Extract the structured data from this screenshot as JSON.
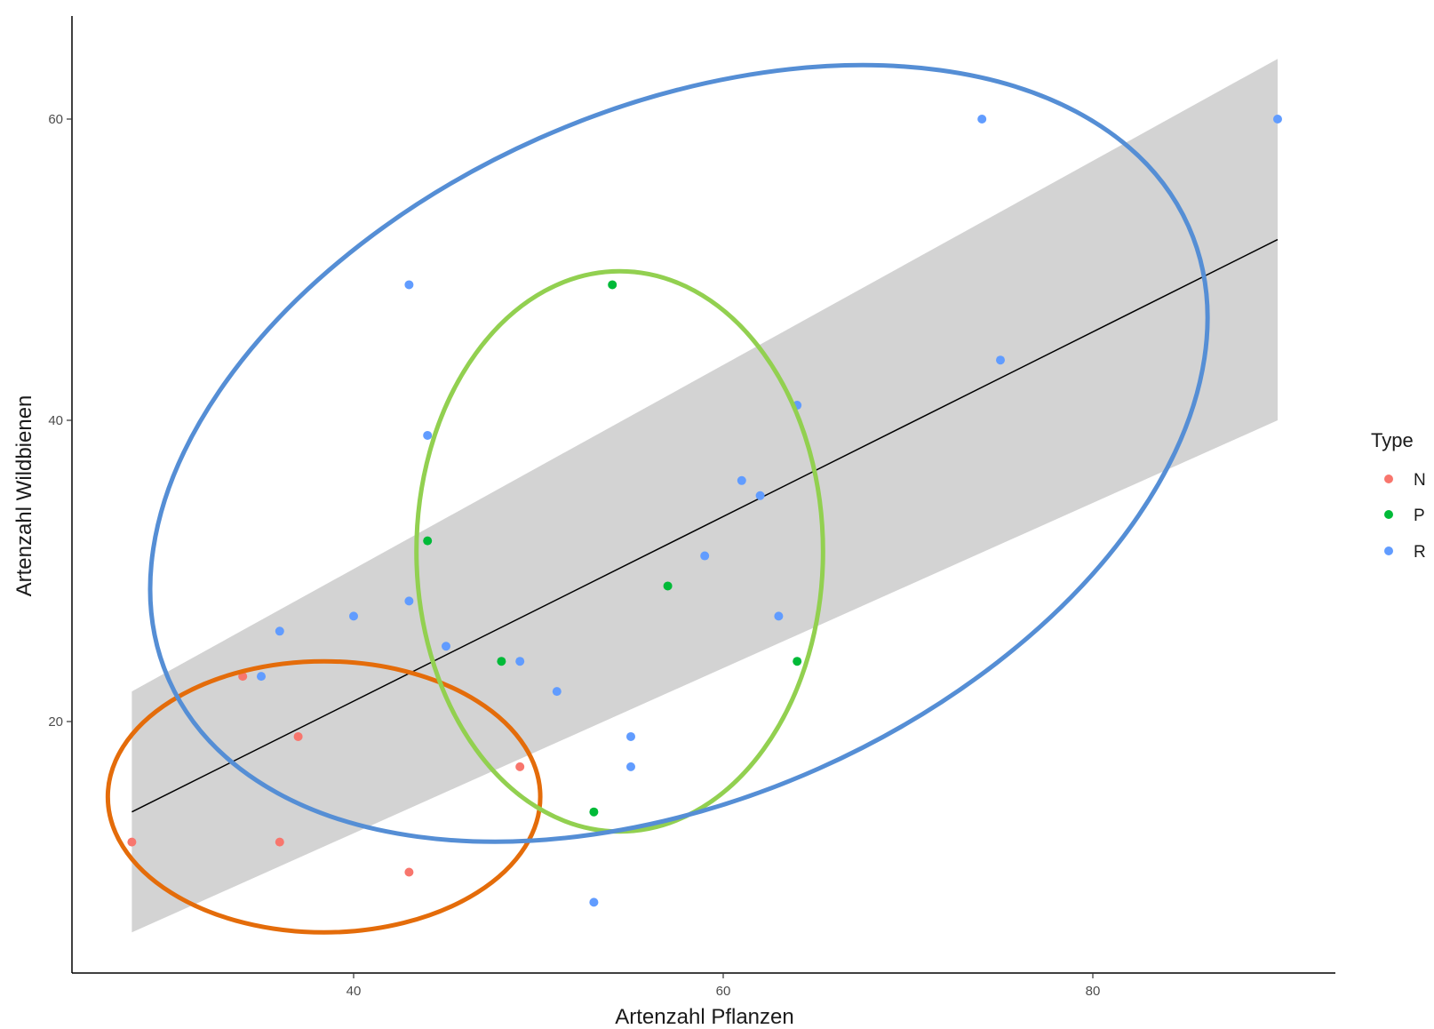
{
  "chart_data": {
    "type": "scatter",
    "title": "",
    "xlabel": "Artenzahl Pflanzen",
    "ylabel": "Artenzahl Wildbienen",
    "xlim": [
      25,
      91
    ],
    "ylim": [
      5,
      68
    ],
    "x_ticks": [
      40,
      60,
      80
    ],
    "y_ticks": [
      20,
      40,
      60
    ],
    "grid": false,
    "legend": {
      "title": "Type",
      "placement": "right",
      "entries": [
        {
          "label": "N",
          "color": "#F8766D"
        },
        {
          "label": "P",
          "color": "#00BA38"
        },
        {
          "label": "R",
          "color": "#619CFF"
        }
      ]
    },
    "series": [
      {
        "name": "N",
        "color": "#F8766D",
        "points": [
          [
            28,
            12
          ],
          [
            34,
            23
          ],
          [
            36,
            12
          ],
          [
            37,
            19
          ],
          [
            43,
            10
          ],
          [
            49,
            17
          ]
        ]
      },
      {
        "name": "P",
        "color": "#00BA38",
        "points": [
          [
            44,
            32
          ],
          [
            48,
            24
          ],
          [
            53,
            14
          ],
          [
            54,
            49
          ],
          [
            57,
            29
          ],
          [
            64,
            24
          ]
        ]
      },
      {
        "name": "R",
        "color": "#619CFF",
        "points": [
          [
            35,
            23
          ],
          [
            36,
            26
          ],
          [
            40,
            27
          ],
          [
            43,
            49
          ],
          [
            43,
            28
          ],
          [
            44,
            39
          ],
          [
            45,
            25
          ],
          [
            49,
            24
          ],
          [
            51,
            22
          ],
          [
            53,
            8
          ],
          [
            55,
            19
          ],
          [
            55,
            17
          ],
          [
            59,
            31
          ],
          [
            61,
            36
          ],
          [
            62,
            35
          ],
          [
            63,
            27
          ],
          [
            64,
            41
          ],
          [
            74,
            60
          ],
          [
            75,
            44
          ],
          [
            90,
            60
          ]
        ]
      }
    ],
    "regression": {
      "color": "#000000",
      "band_color": "#D3D3D3",
      "x": [
        28,
        90
      ],
      "y": [
        14,
        52
      ],
      "lower": [
        6,
        40
      ],
      "upper": [
        22,
        64
      ]
    },
    "annotations": [
      {
        "type": "ellipse",
        "color": "#E46C0A",
        "center": [
          38.4,
          15
        ],
        "radius_x": 11.7,
        "radius_y": 9
      },
      {
        "type": "ellipse",
        "color": "#92D050",
        "center": [
          54.4,
          31.3
        ],
        "radius_x": 11,
        "radius_y": 18.6
      },
      {
        "type": "ellipse",
        "color": "#558ED5",
        "center": [
          57.6,
          37.8
        ],
        "rotate_screen_deg": -24,
        "radius_px": [
          630,
          388
        ]
      }
    ]
  }
}
